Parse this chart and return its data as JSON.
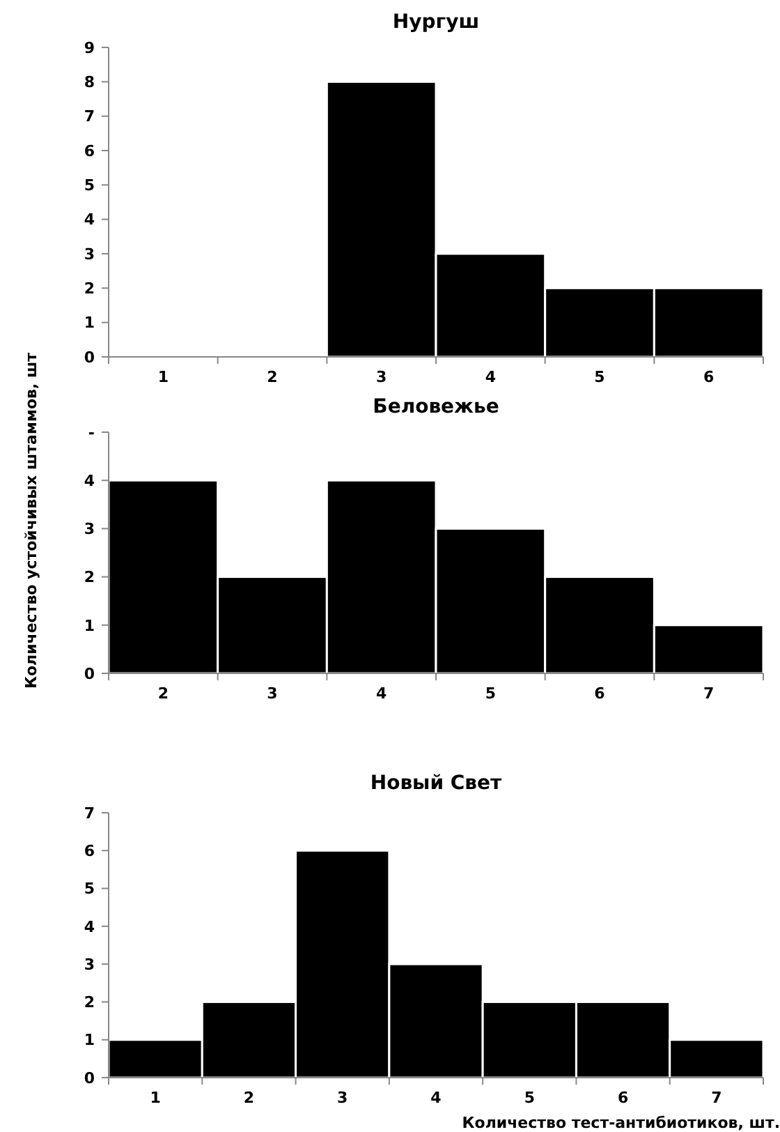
{
  "chart_data": [
    {
      "type": "bar",
      "title": "Нургуш",
      "categories": [
        "1",
        "2",
        "3",
        "4",
        "5",
        "6"
      ],
      "values": [
        0,
        0,
        8,
        3,
        2,
        2
      ],
      "color": "#000000",
      "ylim": [
        0,
        9
      ],
      "yticks": [
        0,
        1,
        2,
        3,
        4,
        5,
        6,
        7,
        8,
        9
      ],
      "grid": false
    },
    {
      "type": "bar",
      "title": "Беловежье",
      "ylabel": "Количество устойчивых штаммов, шт",
      "categories": [
        "2",
        "3",
        "4",
        "5",
        "6",
        "7"
      ],
      "values": [
        4,
        2,
        4,
        3,
        2,
        1
      ],
      "color": "#000000",
      "ylim": [
        0,
        5
      ],
      "yticks": [
        0,
        1,
        2,
        3,
        4,
        {
          "value": 5,
          "label": "-"
        }
      ],
      "grid": false
    },
    {
      "type": "bar",
      "title": "Новый Свет",
      "xlabel": "Количество тест-антибиотиков, шт.",
      "categories": [
        "1",
        "2",
        "3",
        "4",
        "5",
        "6",
        "7"
      ],
      "values": [
        1,
        2,
        6,
        3,
        2,
        2,
        1
      ],
      "color": "#000000",
      "ylim": [
        0,
        7
      ],
      "yticks": [
        0,
        1,
        2,
        3,
        4,
        5,
        6,
        7
      ],
      "grid": false
    }
  ]
}
